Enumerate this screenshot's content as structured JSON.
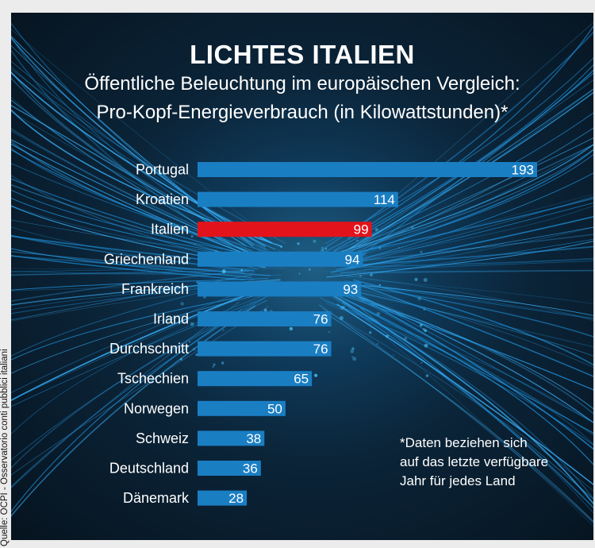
{
  "title": "LICHTES ITALIEN",
  "subtitle_line1": "Öffentliche Beleuchtung im europäischen Vergleich:",
  "subtitle_line2": "Pro-Kopf-Energieverbrauch (in Kilowattstunden)*",
  "footnote": {
    "line1": "*Daten beziehen sich",
    "line2": "auf das letzte verfügbare",
    "line3": "Jahr für jedes Land"
  },
  "source": "Quelle: OCPI - Osservatorio conti pubblici italiani",
  "colors": {
    "bar": "#1a7ec3",
    "highlight": "#e3131b",
    "background": "#0b2438",
    "text": "#ffffff"
  },
  "chart_data": {
    "type": "bar",
    "orientation": "horizontal",
    "title": "LICHTES ITALIEN",
    "categories": [
      "Portugal",
      "Kroatien",
      "Italien",
      "Griechenland",
      "Frankreich",
      "Irland",
      "Durchschnitt",
      "Tschechien",
      "Norwegen",
      "Schweiz",
      "Deutschland",
      "Dänemark"
    ],
    "values": [
      193,
      114,
      99,
      94,
      93,
      76,
      76,
      65,
      50,
      38,
      36,
      28
    ],
    "highlight": "Italien",
    "xlim": [
      0,
      200
    ],
    "xlabel": "",
    "ylabel": "Pro-Kopf-Energieverbrauch (in Kilowattstunden)",
    "grid": false,
    "legend": "none"
  }
}
